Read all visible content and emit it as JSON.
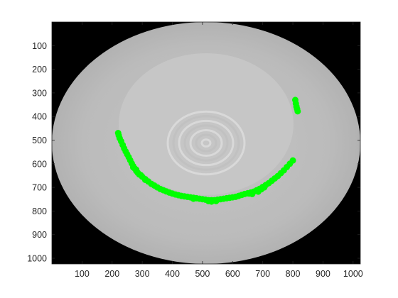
{
  "chart_data": {
    "type": "scatter",
    "title": "",
    "xlabel": "",
    "ylabel": "",
    "xlim": [
      0,
      1024
    ],
    "ylim": [
      0,
      1024
    ],
    "y_axis_reversed": true,
    "grid": false,
    "x_ticks": [
      100,
      200,
      300,
      400,
      500,
      600,
      700,
      800,
      900,
      1000
    ],
    "y_ticks": [
      100,
      200,
      300,
      400,
      500,
      600,
      700,
      800,
      900,
      1000
    ],
    "image_background": {
      "description_colors": {
        "outside": "#000000",
        "outer_disc": "#bcbcbc",
        "inner_disc": "#c8c8c8",
        "rings": "#dcdcdc"
      },
      "outer_ellipse": {
        "cx": 512,
        "cy": 512,
        "rx": 512,
        "ry": 512
      },
      "inner_ellipse": {
        "cx": 512,
        "cy": 432,
        "rx": 290,
        "ry": 300
      },
      "ring_center": {
        "x": 512,
        "y": 512
      }
    },
    "series": [
      {
        "marker": "o",
        "color": "#00ff00",
        "points": [
          [
            220,
            470
          ],
          [
            222,
            480
          ],
          [
            225,
            492
          ],
          [
            230,
            505
          ],
          [
            235,
            520
          ],
          [
            240,
            535
          ],
          [
            245,
            548
          ],
          [
            250,
            560
          ],
          [
            255,
            572
          ],
          [
            260,
            585
          ],
          [
            265,
            598
          ],
          [
            270,
            610
          ],
          [
            275,
            620
          ],
          [
            280,
            630
          ],
          [
            285,
            638
          ],
          [
            290,
            645
          ],
          [
            300,
            655
          ],
          [
            310,
            665
          ],
          [
            320,
            675
          ],
          [
            330,
            685
          ],
          [
            340,
            692
          ],
          [
            350,
            700
          ],
          [
            360,
            707
          ],
          [
            370,
            712
          ],
          [
            380,
            717
          ],
          [
            390,
            722
          ],
          [
            400,
            726
          ],
          [
            410,
            730
          ],
          [
            420,
            733
          ],
          [
            430,
            736
          ],
          [
            440,
            738
          ],
          [
            450,
            740
          ],
          [
            460,
            742
          ],
          [
            470,
            744
          ],
          [
            480,
            746
          ],
          [
            490,
            748
          ],
          [
            500,
            750
          ],
          [
            510,
            752
          ],
          [
            520,
            754
          ],
          [
            530,
            754
          ],
          [
            540,
            754
          ],
          [
            550,
            752
          ],
          [
            560,
            750
          ],
          [
            570,
            748
          ],
          [
            580,
            746
          ],
          [
            590,
            744
          ],
          [
            600,
            742
          ],
          [
            610,
            740
          ],
          [
            620,
            736
          ],
          [
            630,
            732
          ],
          [
            640,
            728
          ],
          [
            650,
            725
          ],
          [
            660,
            722
          ],
          [
            670,
            718
          ],
          [
            680,
            712
          ],
          [
            690,
            706
          ],
          [
            700,
            698
          ],
          [
            710,
            690
          ],
          [
            720,
            682
          ],
          [
            730,
            672
          ],
          [
            740,
            662
          ],
          [
            750,
            652
          ],
          [
            760,
            640
          ],
          [
            770,
            628
          ],
          [
            780,
            614
          ],
          [
            790,
            600
          ],
          [
            800,
            586
          ],
          [
            270,
            615
          ],
          [
            280,
            625
          ],
          [
            295,
            648
          ],
          [
            310,
            668
          ],
          [
            470,
            748
          ],
          [
            520,
            758
          ],
          [
            530,
            760
          ],
          [
            545,
            758
          ],
          [
            655,
            726
          ],
          [
            665,
            728
          ],
          [
            685,
            718
          ],
          [
            695,
            708
          ],
          [
            705,
            700
          ],
          [
            808,
            330
          ],
          [
            810,
            345
          ],
          [
            812,
            358
          ],
          [
            814,
            368
          ],
          [
            816,
            378
          ]
        ]
      }
    ]
  }
}
